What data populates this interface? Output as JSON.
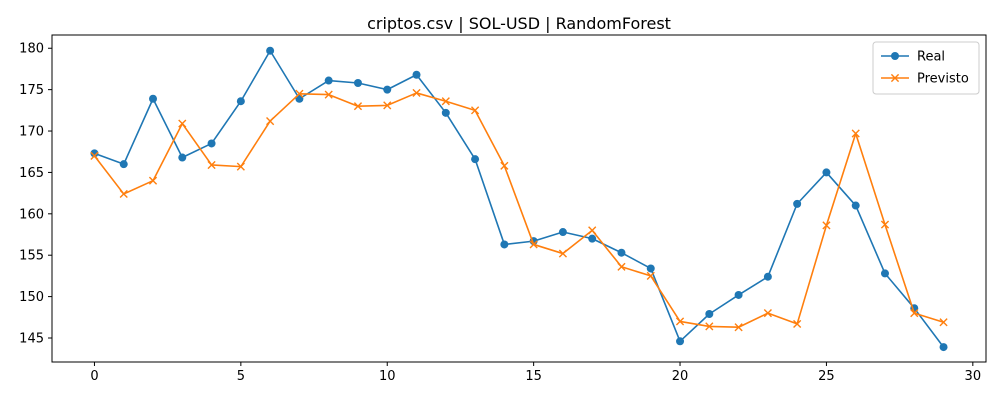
{
  "chart_data": {
    "type": "line",
    "title": "criptos.csv | SOL-USD | RandomForest",
    "xlabel": "",
    "ylabel": "",
    "x": [
      0,
      1,
      2,
      3,
      4,
      5,
      6,
      7,
      8,
      9,
      10,
      11,
      12,
      13,
      14,
      15,
      16,
      17,
      18,
      19,
      20,
      21,
      22,
      23,
      24,
      25,
      26,
      27,
      28,
      29
    ],
    "xlim": [
      -1.45,
      30.45
    ],
    "ylim": [
      142.1,
      181.6
    ],
    "xticks": [
      0,
      5,
      10,
      15,
      20,
      25,
      30
    ],
    "yticks": [
      145,
      150,
      155,
      160,
      165,
      170,
      175,
      180
    ],
    "grid": false,
    "legend_position": "top-right",
    "series": [
      {
        "name": "Real",
        "color": "#1f77b4",
        "marker": "circle",
        "values": [
          167.3,
          166.0,
          173.9,
          166.8,
          168.5,
          173.6,
          179.7,
          173.9,
          176.1,
          175.8,
          175.0,
          176.8,
          172.2,
          166.6,
          156.3,
          156.7,
          157.8,
          157.0,
          155.3,
          153.4,
          144.6,
          147.9,
          150.2,
          152.4,
          161.2,
          165.0,
          161.0,
          152.8,
          148.6,
          143.9
        ]
      },
      {
        "name": "Previsto",
        "color": "#ff7f0e",
        "marker": "x",
        "values": [
          167.0,
          162.4,
          164.0,
          170.9,
          165.9,
          165.7,
          171.2,
          174.5,
          174.4,
          173.0,
          173.1,
          174.6,
          173.6,
          172.5,
          165.8,
          156.3,
          155.2,
          158.0,
          153.6,
          152.5,
          147.0,
          146.4,
          146.3,
          148.0,
          146.7,
          158.6,
          169.7,
          158.7,
          148.0,
          146.9
        ]
      }
    ]
  }
}
